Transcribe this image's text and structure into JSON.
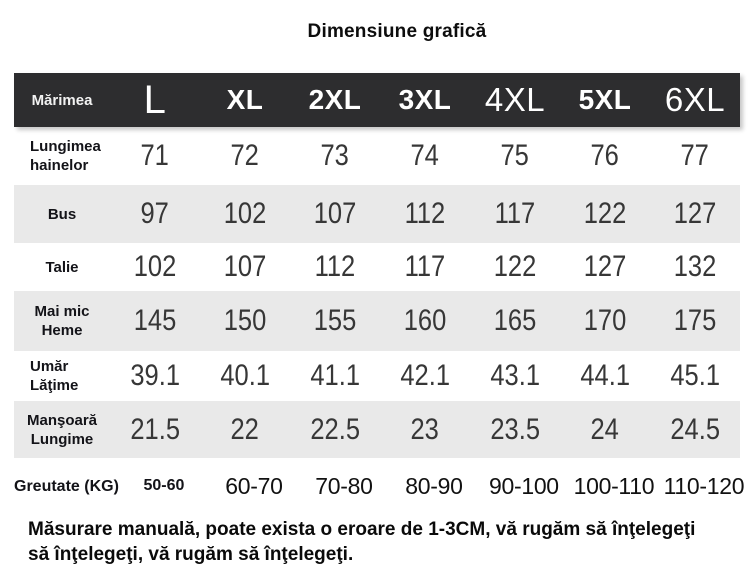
{
  "title": "Dimensiune grafică",
  "table": {
    "header": {
      "label": "Mărimea",
      "sizes": [
        "L",
        "XL",
        "2XL",
        "3XL",
        "4XL",
        "5XL",
        "6XL"
      ]
    },
    "rows": [
      {
        "label": "Lungimea\nhainelor",
        "values": [
          "71",
          "72",
          "73",
          "74",
          "75",
          "76",
          "77"
        ]
      },
      {
        "label": "Bus",
        "values": [
          "97",
          "102",
          "107",
          "112",
          "117",
          "122",
          "127"
        ]
      },
      {
        "label": "Talie",
        "values": [
          "102",
          "107",
          "112",
          "117",
          "122",
          "127",
          "132"
        ]
      },
      {
        "label": "Mai mic\nHeme",
        "values": [
          "145",
          "150",
          "155",
          "160",
          "165",
          "170",
          "175"
        ]
      },
      {
        "label": "Umăr\nLăţime",
        "values": [
          "39.1",
          "40.1",
          "41.1",
          "42.1",
          "43.1",
          "44.1",
          "45.1"
        ]
      },
      {
        "label": "Manşoară\nLungime",
        "values": [
          "21.5",
          "22",
          "22.5",
          "23",
          "23.5",
          "24",
          "24.5"
        ]
      }
    ],
    "weight_row": {
      "label": "Greutate (KG)",
      "values": [
        "50-60",
        "60-70",
        "70-80",
        "80-90",
        "90-100",
        "100-110",
        "110-120"
      ]
    }
  },
  "note": "Măsurare manuală, poate exista o eroare de 1-3CM, vă rugăm să înţelegeţi\nsă înţelegeţi, vă rugăm să înţelegeţi.",
  "colors": {
    "header_bg": "#2d2d2f",
    "header_text": "#ffffff",
    "stripe_bg": "#e9e9e9",
    "value_text": "#373737"
  }
}
